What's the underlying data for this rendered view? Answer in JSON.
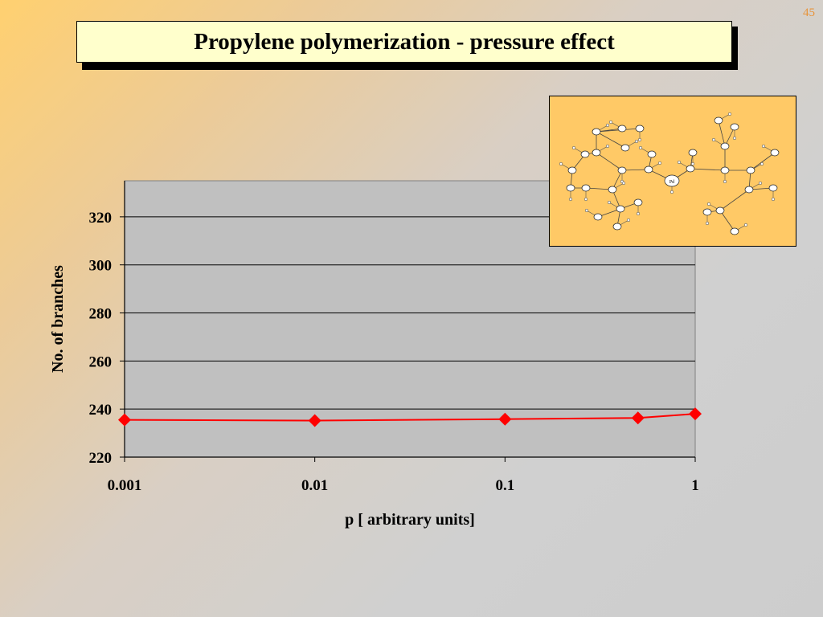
{
  "slide": {
    "number": "45",
    "title": "Propylene polymerization - pressure effect"
  },
  "colors": {
    "title_bg": "#ffffcc",
    "plot_bg": "#c0c0c0",
    "series": "#ff0000",
    "molecule_bg": "#ffc966"
  },
  "molecule": {
    "description_icon": "pd-complex-structure",
    "center_label": "Pd"
  },
  "chart_data": {
    "type": "line",
    "xscale": "log",
    "x": [
      0.001,
      0.01,
      0.1,
      0.5,
      1
    ],
    "series": [
      {
        "values": [
          235.5,
          235.2,
          235.8,
          236.3,
          238.0
        ]
      }
    ],
    "xlabel": "p [ arbitrary units]",
    "ylabel": "No. of branches",
    "xticks": [
      "0.001",
      "0.01",
      "0.1",
      "1"
    ],
    "yticks": [
      "220",
      "240",
      "260",
      "280",
      "300",
      "320"
    ],
    "xlim": [
      0.001,
      1
    ],
    "ylim": [
      220,
      335
    ],
    "grid": "horizontal",
    "marker": "diamond"
  }
}
